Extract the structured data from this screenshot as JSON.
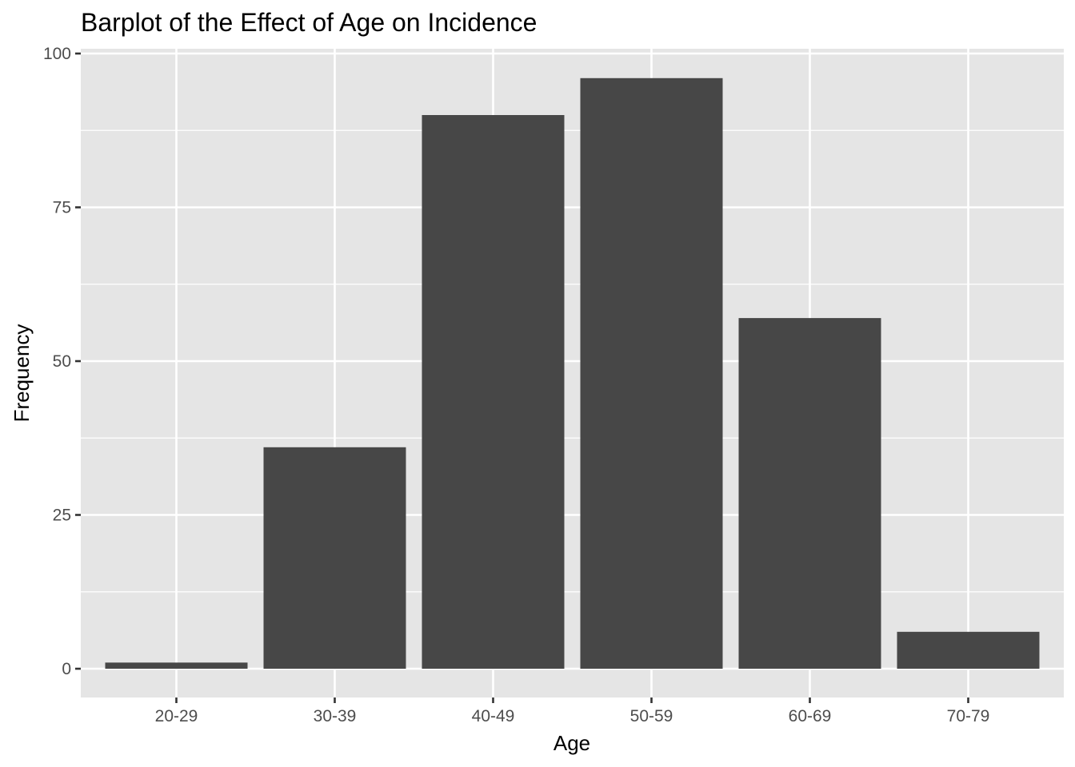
{
  "chart_data": {
    "type": "bar",
    "title": "Barplot of the Effect of Age on Incidence",
    "xlabel": "Age",
    "ylabel": "Frequency",
    "categories": [
      "20-29",
      "30-39",
      "40-49",
      "50-59",
      "60-69",
      "70-79"
    ],
    "values": [
      1,
      36,
      90,
      96,
      57,
      6
    ],
    "ylim": [
      0,
      100
    ],
    "yticks": [
      0,
      25,
      50,
      75,
      100
    ],
    "ytick_labels": [
      "0",
      "25",
      "50",
      "75",
      "100"
    ],
    "grid": true,
    "legend": "none"
  },
  "colors": {
    "bar": "#474747",
    "panel_background": "#E5E5E5",
    "grid": "#FFFFFF",
    "tick_label": "#4D4D4D",
    "title": "#000000"
  }
}
